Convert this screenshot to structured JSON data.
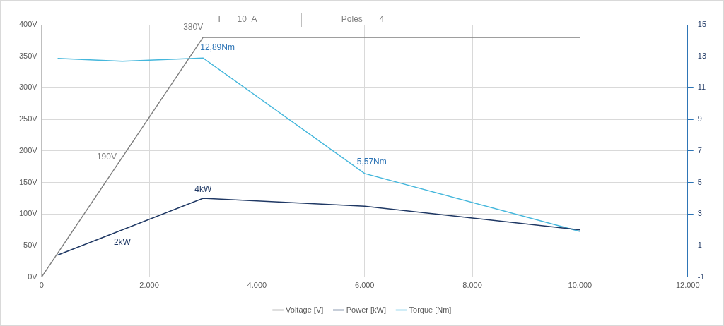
{
  "chart_data": {
    "type": "line",
    "title": "I =    10  A",
    "subtitle": "Poles =    4",
    "legend": "bottom",
    "grid": true,
    "xlim": [
      0,
      12000
    ],
    "xticks": [
      0,
      {
        "value": 2000,
        "label": "2.000"
      },
      {
        "value": 4000,
        "label": "4.000"
      },
      {
        "value": 6000,
        "label": "6.000"
      },
      {
        "value": 8000,
        "label": "8.000"
      },
      {
        "value": 10000,
        "label": "10.000"
      },
      {
        "value": 12000,
        "label": "12.000"
      }
    ],
    "ylim": [
      0,
      400
    ],
    "yticks": [
      {
        "value": 0,
        "label": "0V"
      },
      {
        "value": 50,
        "label": "50V"
      },
      {
        "value": 100,
        "label": "100V"
      },
      {
        "value": 150,
        "label": "150V"
      },
      {
        "value": 200,
        "label": "200V"
      },
      {
        "value": 250,
        "label": "250V"
      },
      {
        "value": 300,
        "label": "300V"
      },
      {
        "value": 350,
        "label": "350V"
      },
      {
        "value": 400,
        "label": "400V"
      }
    ],
    "y2lim": [
      -1,
      15
    ],
    "y2ticks": [
      -1,
      1,
      3,
      5,
      7,
      9,
      11,
      13,
      15
    ],
    "series": [
      {
        "name": "Voltage [V]",
        "color": "#7f7f7f",
        "axis": "y",
        "type": "line",
        "x": [
          0,
          3000,
          10000
        ],
        "values": [
          0,
          380,
          380
        ]
      },
      {
        "name": "Power [kW]",
        "color": "#1f3864",
        "axis": "y2",
        "type": "line",
        "x": [
          300,
          3000,
          6000,
          10000
        ],
        "values": [
          0.4,
          4,
          3.5,
          2
        ]
      },
      {
        "name": "Torque [Nm]",
        "color": "#45b7dc",
        "axis": "y2",
        "type": "line",
        "x": [
          300,
          1500,
          3000,
          6000,
          10000
        ],
        "values": [
          12.87,
          12.69,
          12.89,
          5.57,
          1.9
        ]
      }
    ],
    "annotations": [
      {
        "text": "380V",
        "x": 3000,
        "y": 380,
        "axis": "y",
        "color": "#7f7f7f"
      },
      {
        "text": "190V",
        "x": 1500,
        "y": 190,
        "axis": "y",
        "color": "#7f7f7f"
      },
      {
        "text": "12,89Nm",
        "x": 3000,
        "y": 12.89,
        "axis": "y2",
        "color": "#2e75b6"
      },
      {
        "text": "5,57Nm",
        "x": 6000,
        "y": 5.57,
        "axis": "y2",
        "color": "#2e75b6"
      },
      {
        "text": "4kW",
        "x": 3000,
        "y": 4,
        "axis": "y2",
        "color": "#1f3864"
      },
      {
        "text": "2kW",
        "x": 1500,
        "y": 2,
        "axis": "y2",
        "color": "#1f3864"
      }
    ]
  }
}
